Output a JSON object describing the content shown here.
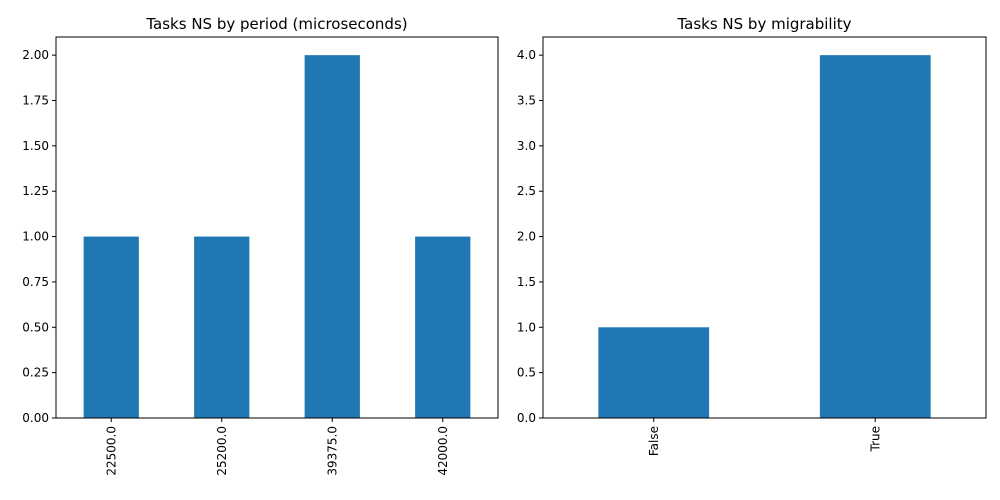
{
  "chart_data": [
    {
      "type": "bar",
      "title": "Tasks NS by period (microseconds)",
      "categories": [
        "22500.0",
        "25200.0",
        "39375.0",
        "42000.0"
      ],
      "values": [
        1,
        1,
        2,
        1
      ],
      "ylim": [
        0,
        2.1
      ],
      "yticks": [
        "0.00",
        "0.25",
        "0.50",
        "0.75",
        "1.00",
        "1.25",
        "1.50",
        "1.75",
        "2.00"
      ],
      "bar_color": "#1f77b4",
      "grid": false,
      "xtick_rotation": "vertical"
    },
    {
      "type": "bar",
      "title": "Tasks NS by migrability",
      "categories": [
        "False",
        "True"
      ],
      "values": [
        1,
        4
      ],
      "ylim": [
        0,
        4.2
      ],
      "yticks": [
        "0.0",
        "0.5",
        "1.0",
        "1.5",
        "2.0",
        "2.5",
        "3.0",
        "3.5",
        "4.0"
      ],
      "bar_color": "#1f77b4",
      "grid": false,
      "xtick_rotation": "vertical"
    }
  ]
}
